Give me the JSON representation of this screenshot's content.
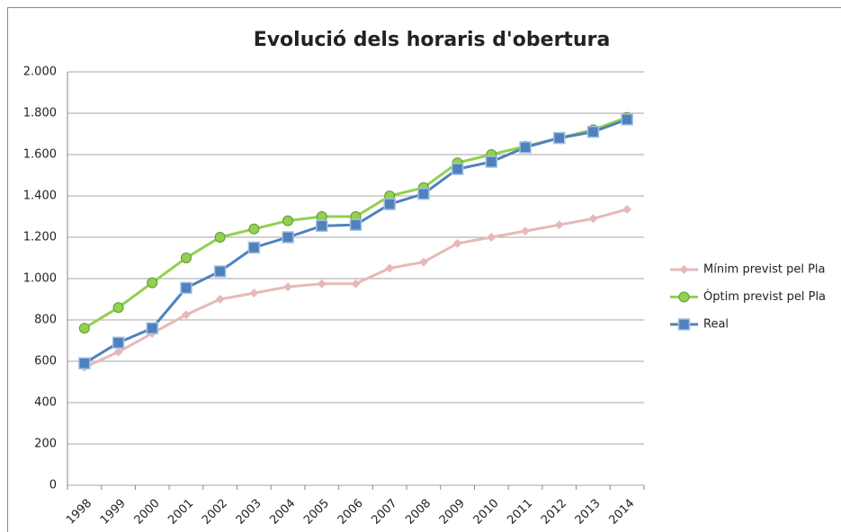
{
  "chart_data": {
    "type": "line",
    "title": "Evolució dels horaris d'obertura",
    "categories": [
      "1998",
      "1999",
      "2000",
      "2001",
      "2002",
      "2003",
      "2004",
      "2005",
      "2006",
      "2007",
      "2008",
      "2009",
      "2010",
      "2011",
      "2012",
      "2013",
      "2014"
    ],
    "series": [
      {
        "name": "Mínim previst pel Pla",
        "color": "#e6b9b8",
        "marker": "diamond",
        "values": [
          570,
          645,
          735,
          825,
          900,
          930,
          960,
          975,
          975,
          1050,
          1080,
          1170,
          1200,
          1230,
          1260,
          1290,
          1335
        ]
      },
      {
        "name": "Òptim previst pel Pla",
        "color": "#92d050",
        "marker": "circle",
        "values": [
          760,
          860,
          980,
          1100,
          1200,
          1240,
          1280,
          1300,
          1300,
          1400,
          1440,
          1560,
          1600,
          1640,
          1680,
          1720,
          1780
        ]
      },
      {
        "name": "Real",
        "color": "#4f81bd",
        "marker": "square",
        "values": [
          590,
          690,
          760,
          955,
          1035,
          1150,
          1200,
          1255,
          1260,
          1360,
          1410,
          1530,
          1565,
          1635,
          1680,
          1710,
          1770
        ]
      }
    ],
    "ylim": [
      0,
      2000
    ],
    "yticks": [
      0,
      200,
      400,
      600,
      800,
      {
        "value": 1000,
        "label": "1.000"
      },
      {
        "value": 1200,
        "label": "1.200"
      },
      {
        "value": 1400,
        "label": "1.400"
      },
      {
        "value": 1600,
        "label": "1.600"
      },
      {
        "value": 1800,
        "label": "1.800"
      },
      {
        "value": 2000,
        "label": "2.000"
      }
    ],
    "grid": true,
    "legend": "right"
  }
}
